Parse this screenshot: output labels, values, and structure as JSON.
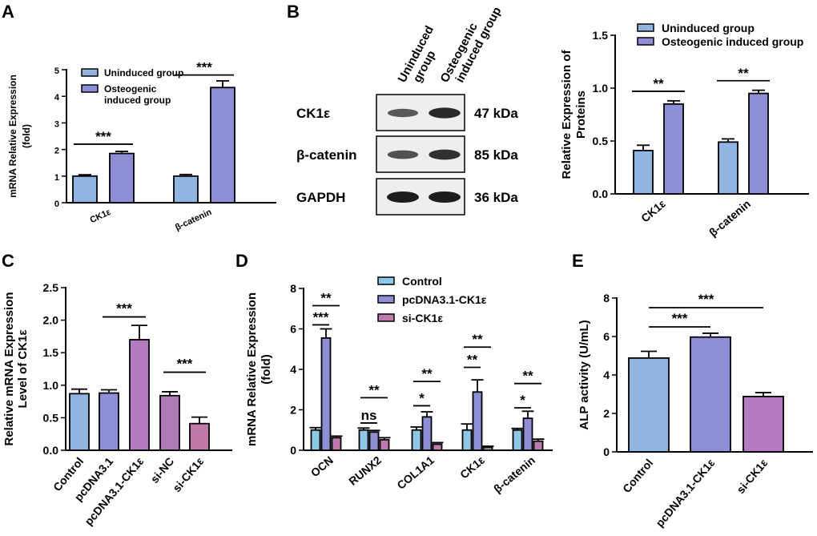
{
  "panels": {
    "A": {
      "letter": "A"
    },
    "B": {
      "letter": "B"
    },
    "C": {
      "letter": "C"
    },
    "D": {
      "letter": "D"
    },
    "E": {
      "letter": "E"
    }
  },
  "western_blot": {
    "lane_labels": [
      "Uninduced group",
      "Osteogenic induced group"
    ],
    "lane_label_lines": [
      [
        "Uninduced",
        "group"
      ],
      [
        "Osteogenic",
        "induced group"
      ]
    ],
    "rows": [
      {
        "protein": "CK1ε",
        "size": "47 kDa",
        "band_intensity": [
          0.55,
          0.9
        ]
      },
      {
        "protein": "β-catenin",
        "size": "85 kDa",
        "band_intensity": [
          0.6,
          0.85
        ]
      },
      {
        "protein": "GAPDH",
        "size": "36 kDa",
        "band_intensity": [
          1.0,
          1.0
        ]
      }
    ]
  },
  "chart_data": [
    {
      "panel": "A",
      "type": "bar",
      "title": "",
      "xlabel": "",
      "ylabel": "mRNA Relative Expression (fold)",
      "ylabel_lines": [
        "mRNA Relative Expression",
        "(fold)"
      ],
      "ylim": [
        0,
        5
      ],
      "yticks": [
        0,
        1,
        2,
        3,
        4,
        5
      ],
      "categories": [
        "CK1ε",
        "β-catenin"
      ],
      "series": [
        {
          "name": "Uninduced group",
          "color": "#8fb5e0",
          "values": [
            1.0,
            1.0
          ],
          "errors": [
            0.05,
            0.06
          ]
        },
        {
          "name": "Osteogenic induced group",
          "color": "#8e8ed6",
          "values": [
            1.85,
            4.33
          ],
          "errors": [
            0.08,
            0.25
          ]
        }
      ],
      "legend_lines": [
        [
          "Uninduced group"
        ],
        [
          "Osteogenic",
          "induced group"
        ]
      ],
      "legend": "top-left",
      "significance": [
        {
          "category": 0,
          "label": "***",
          "y": 2.2
        },
        {
          "category": 1,
          "label": "***",
          "y": 4.8
        }
      ]
    },
    {
      "panel": "B",
      "type": "bar",
      "title": "",
      "xlabel": "",
      "ylabel": "Relative Expression of Proteins",
      "ylabel_lines": [
        "Relative  Expression of",
        "Proteins"
      ],
      "ylim": [
        0,
        1.5
      ],
      "yticks": [
        0.0,
        0.5,
        1.0,
        1.5
      ],
      "ytick_labels": [
        "0.0",
        "0.5",
        "1.0",
        "1.5"
      ],
      "categories": [
        "CK1ε",
        "β-catenin"
      ],
      "series": [
        {
          "name": "Uninduced group",
          "color": "#8fb5e0",
          "values": [
            0.41,
            0.49
          ],
          "errors": [
            0.05,
            0.03
          ]
        },
        {
          "name": "Osteogenic induced group",
          "color": "#8e8ed6",
          "values": [
            0.85,
            0.95
          ],
          "errors": [
            0.03,
            0.03
          ]
        }
      ],
      "legend": "top",
      "significance": [
        {
          "category": 0,
          "label": "**",
          "y": 0.97
        },
        {
          "category": 1,
          "label": "**",
          "y": 1.07
        }
      ]
    },
    {
      "panel": "C",
      "type": "bar",
      "title": "",
      "xlabel": "",
      "ylabel": "Relative mRNA Expression Level of CK1ε",
      "ylabel_lines": [
        "Relative  mRNA Expression",
        "Level of CK1ε"
      ],
      "ylim": [
        0,
        2.5
      ],
      "yticks": [
        0.0,
        0.5,
        1.0,
        1.5,
        2.0,
        2.5
      ],
      "ytick_labels": [
        "0.0",
        "0.5",
        "1.0",
        "1.5",
        "2.0",
        "2.5"
      ],
      "categories": [
        "Control",
        "pcDNA3.1",
        "pcDNA3.1-CK1ε",
        "si-NC",
        "si-CK1ε"
      ],
      "values": [
        0.87,
        0.88,
        1.7,
        0.84,
        0.41
      ],
      "errors": [
        0.07,
        0.05,
        0.22,
        0.06,
        0.1
      ],
      "colors": [
        "#8fb5e0",
        "#8e8ed6",
        "#b57ac4",
        "#b07ab8",
        "#c07aa8"
      ],
      "significance": [
        {
          "from": 1,
          "to": 2,
          "label": "***",
          "y": 2.05
        },
        {
          "from": 3,
          "to": 4,
          "label": "***",
          "y": 1.2
        }
      ]
    },
    {
      "panel": "D",
      "type": "bar",
      "title": "",
      "xlabel": "",
      "ylabel": "mRNA Relative Expression (fold)",
      "ylabel_lines": [
        "mRNA Relative Expression",
        "(fold)"
      ],
      "ylim": [
        0,
        8
      ],
      "yticks": [
        0,
        2,
        4,
        6,
        8
      ],
      "categories": [
        "OCN",
        "RUNX2",
        "COL1A1",
        "CK1ε",
        "β-catenin"
      ],
      "series": [
        {
          "name": "Control",
          "color": "#8fc8e6",
          "values": [
            1.0,
            1.0,
            1.0,
            1.0,
            1.0
          ],
          "errors": [
            0.12,
            0.1,
            0.15,
            0.3,
            0.08
          ]
        },
        {
          "name": "pcDNA3.1-CK1ε",
          "color": "#8e8ed6",
          "values": [
            5.55,
            0.9,
            1.65,
            2.88,
            1.58
          ],
          "errors": [
            0.45,
            0.08,
            0.25,
            0.6,
            0.35
          ]
        },
        {
          "name": "si-CK1ε",
          "color": "#c07ab0",
          "values": [
            0.62,
            0.52,
            0.3,
            0.15,
            0.45
          ],
          "errors": [
            0.08,
            0.1,
            0.08,
            0.05,
            0.1
          ]
        }
      ],
      "legend": "top",
      "significance": [
        {
          "category": 0,
          "from": 0,
          "to": 1,
          "label": "***",
          "y": 6.2
        },
        {
          "category": 0,
          "from": 0,
          "to": 2,
          "label": "**",
          "y": 7.15
        },
        {
          "category": 1,
          "from": 0,
          "to": 1,
          "label": "ns",
          "y": 1.35
        },
        {
          "category": 1,
          "from": 0,
          "to": 2,
          "label": "**",
          "y": 2.6
        },
        {
          "category": 2,
          "from": 0,
          "to": 1,
          "label": "*",
          "y": 2.2
        },
        {
          "category": 2,
          "from": 0,
          "to": 2,
          "label": "**",
          "y": 3.4
        },
        {
          "category": 3,
          "from": 0,
          "to": 1,
          "label": "**",
          "y": 4.1
        },
        {
          "category": 3,
          "from": 0,
          "to": 2,
          "label": "**",
          "y": 5.1
        },
        {
          "category": 4,
          "from": 0,
          "to": 1,
          "label": "*",
          "y": 2.1
        },
        {
          "category": 4,
          "from": 0,
          "to": 2,
          "label": "**",
          "y": 3.3
        }
      ]
    },
    {
      "panel": "E",
      "type": "bar",
      "title": "",
      "xlabel": "",
      "ylabel": "ALP activity (U/mL)",
      "ylim": [
        0,
        8
      ],
      "yticks": [
        0,
        2,
        4,
        6,
        8
      ],
      "categories": [
        "Control",
        "pcDNA3.1-CK1ε",
        "si-CK1ε"
      ],
      "values": [
        4.88,
        5.97,
        2.88
      ],
      "errors": [
        0.35,
        0.2,
        0.2
      ],
      "colors": [
        "#8fb5e0",
        "#8e8ed6",
        "#b57ac4"
      ],
      "significance": [
        {
          "from": 0,
          "to": 1,
          "label": "***",
          "y": 6.5
        },
        {
          "from": 0,
          "to": 2,
          "label": "***",
          "y": 7.5
        }
      ]
    }
  ]
}
